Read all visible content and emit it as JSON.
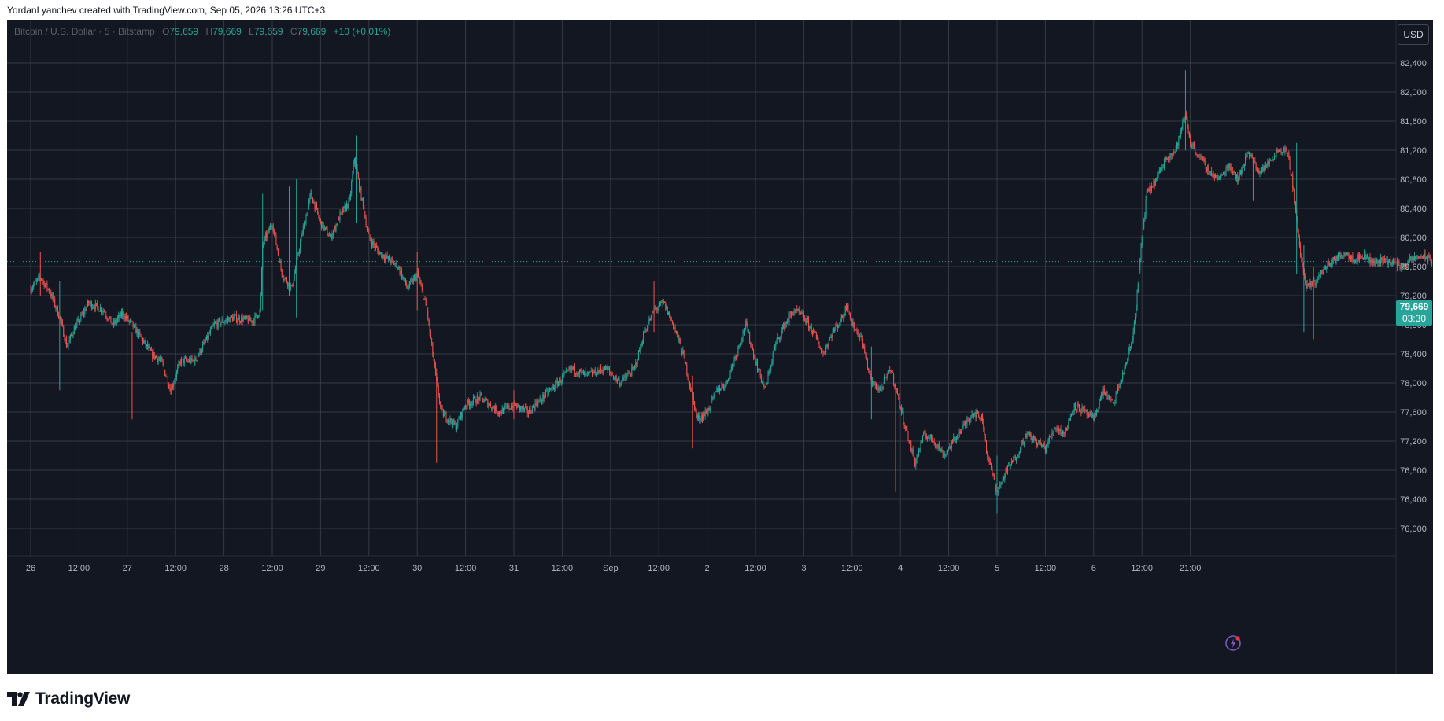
{
  "header": {
    "caption": "YordanLyanchev created with TradingView.com, Sep 05, 2026 13:26 UTC+3"
  },
  "legend": {
    "symbol": "Bitcoin / U.S. Dollar · 5 · Bitstamp",
    "open_label": "O",
    "open": "79,659",
    "high_label": "H",
    "high": "79,669",
    "low_label": "L",
    "low": "79,659",
    "close_label": "C",
    "close": "79,669",
    "change": "+10 (+0.01%)"
  },
  "currency_button": "USD",
  "last_price": {
    "price": "79,669",
    "countdown": "03:30"
  },
  "brand": {
    "name": "TradingView",
    "icon": "tradingview-logo-icon"
  },
  "icons": {
    "replay": "replay-icon"
  },
  "colors": {
    "background": "#131722",
    "grid": "#363a45",
    "up": "#26a69a",
    "down": "#ef5350",
    "axis_text": "#b2b5be",
    "accent": "#9c27b0"
  },
  "chart_data": {
    "type": "candlestick",
    "y_ticks": [
      82400,
      82000,
      81600,
      81200,
      80800,
      80400,
      80000,
      79600,
      79200,
      78800,
      78400,
      78000,
      77600,
      77200,
      76800,
      76400,
      76000
    ],
    "ylim": [
      75650,
      82900
    ],
    "x_labels": [
      "26",
      "12:00",
      "27",
      "12:00",
      "28",
      "12:00",
      "29",
      "12:00",
      "30",
      "12:00",
      "31",
      "12:00",
      "Sep",
      "12:00",
      "2",
      "12:00",
      "3",
      "12:00",
      "4",
      "12:00",
      "5",
      "12:00",
      "6",
      "12:00",
      "21:00"
    ],
    "last_price": 79669,
    "grid": true,
    "path_points": [
      [
        0,
        79300
      ],
      [
        0.2,
        79450
      ],
      [
        0.4,
        79250
      ],
      [
        0.6,
        78900
      ],
      [
        0.75,
        78500
      ],
      [
        0.9,
        78750
      ],
      [
        1.0,
        78850
      ],
      [
        1.2,
        79100
      ],
      [
        1.5,
        79000
      ],
      [
        1.7,
        78800
      ],
      [
        1.9,
        78950
      ],
      [
        2.1,
        78800
      ],
      [
        2.3,
        78600
      ],
      [
        2.5,
        78400
      ],
      [
        2.7,
        78300
      ],
      [
        2.9,
        77900
      ],
      [
        3.1,
        78300
      ],
      [
        3.4,
        78300
      ],
      [
        3.6,
        78550
      ],
      [
        3.8,
        78800
      ],
      [
        4.2,
        78900
      ],
      [
        4.6,
        78850
      ],
      [
        4.75,
        79000
      ],
      [
        4.8,
        79900
      ],
      [
        5.0,
        80200
      ],
      [
        5.2,
        79500
      ],
      [
        5.4,
        79300
      ],
      [
        5.6,
        80000
      ],
      [
        5.8,
        80600
      ],
      [
        6.0,
        80200
      ],
      [
        6.2,
        80000
      ],
      [
        6.4,
        80300
      ],
      [
        6.6,
        80500
      ],
      [
        6.7,
        81100
      ],
      [
        6.8,
        80700
      ],
      [
        7.0,
        80000
      ],
      [
        7.2,
        79800
      ],
      [
        7.4,
        79700
      ],
      [
        7.6,
        79600
      ],
      [
        7.8,
        79300
      ],
      [
        8.0,
        79500
      ],
      [
        8.2,
        79000
      ],
      [
        8.4,
        78000
      ],
      [
        8.5,
        77600
      ],
      [
        8.8,
        77400
      ],
      [
        9.0,
        77700
      ],
      [
        9.3,
        77800
      ],
      [
        9.7,
        77600
      ],
      [
        10.0,
        77700
      ],
      [
        10.3,
        77600
      ],
      [
        10.6,
        77800
      ],
      [
        10.9,
        78000
      ],
      [
        11.2,
        78200
      ],
      [
        11.5,
        78100
      ],
      [
        11.9,
        78200
      ],
      [
        12.2,
        78000
      ],
      [
        12.5,
        78200
      ],
      [
        12.7,
        78700
      ],
      [
        12.9,
        79000
      ],
      [
        13.1,
        79100
      ],
      [
        13.3,
        78800
      ],
      [
        13.5,
        78400
      ],
      [
        13.7,
        77800
      ],
      [
        13.8,
        77500
      ],
      [
        14.0,
        77600
      ],
      [
        14.2,
        77900
      ],
      [
        14.4,
        78000
      ],
      [
        14.6,
        78400
      ],
      [
        14.8,
        78800
      ],
      [
        15.0,
        78300
      ],
      [
        15.2,
        77900
      ],
      [
        15.4,
        78500
      ],
      [
        15.6,
        78800
      ],
      [
        15.8,
        79000
      ],
      [
        16.0,
        78900
      ],
      [
        16.2,
        78700
      ],
      [
        16.4,
        78400
      ],
      [
        16.6,
        78700
      ],
      [
        16.8,
        78900
      ],
      [
        16.9,
        79100
      ],
      [
        17.0,
        78800
      ],
      [
        17.2,
        78600
      ],
      [
        17.4,
        78000
      ],
      [
        17.6,
        77900
      ],
      [
        17.8,
        78200
      ],
      [
        17.95,
        77800
      ],
      [
        18.1,
        77400
      ],
      [
        18.3,
        76900
      ],
      [
        18.5,
        77300
      ],
      [
        18.7,
        77200
      ],
      [
        18.9,
        77000
      ],
      [
        19.1,
        77200
      ],
      [
        19.3,
        77400
      ],
      [
        19.5,
        77600
      ],
      [
        19.7,
        77500
      ],
      [
        19.8,
        77000
      ],
      [
        20.0,
        76500
      ],
      [
        20.2,
        76800
      ],
      [
        20.4,
        77000
      ],
      [
        20.6,
        77300
      ],
      [
        20.8,
        77200
      ],
      [
        21.0,
        77100
      ],
      [
        21.2,
        77400
      ],
      [
        21.4,
        77300
      ],
      [
        21.6,
        77700
      ],
      [
        21.8,
        77600
      ],
      [
        22.0,
        77500
      ],
      [
        22.2,
        77900
      ],
      [
        22.4,
        77700
      ],
      [
        22.6,
        78100
      ],
      [
        22.8,
        78600
      ],
      [
        22.9,
        79200
      ],
      [
        23.0,
        80000
      ],
      [
        23.1,
        80600
      ],
      [
        23.3,
        80800
      ],
      [
        23.5,
        81100
      ],
      [
        23.7,
        81200
      ],
      [
        23.9,
        81700
      ],
      [
        24.0,
        81300
      ],
      [
        24.2,
        81100
      ],
      [
        24.4,
        80900
      ],
      [
        24.6,
        80800
      ],
      [
        24.8,
        81000
      ],
      [
        25.0,
        80800
      ],
      [
        25.2,
        81200
      ],
      [
        25.4,
        80900
      ],
      [
        25.6,
        81000
      ],
      [
        25.8,
        81200
      ],
      [
        26.0,
        81200
      ],
      [
        26.15,
        80600
      ],
      [
        26.25,
        79900
      ],
      [
        26.4,
        79300
      ],
      [
        26.6,
        79400
      ],
      [
        26.8,
        79600
      ],
      [
        27.0,
        79700
      ],
      [
        27.2,
        79800
      ],
      [
        27.4,
        79700
      ],
      [
        27.6,
        79750
      ],
      [
        27.8,
        79650
      ],
      [
        28.0,
        79700
      ],
      [
        28.2,
        79650
      ],
      [
        28.4,
        79600
      ],
      [
        28.6,
        79700
      ],
      [
        28.8,
        79750
      ],
      [
        29.0,
        79669
      ]
    ],
    "spikes": [
      [
        0.2,
        79800,
        79200
      ],
      [
        0.6,
        79400,
        77900
      ],
      [
        2.1,
        78700,
        77500
      ],
      [
        4.8,
        80600,
        79000
      ],
      [
        5.35,
        80700,
        79200
      ],
      [
        5.5,
        80800,
        78900
      ],
      [
        6.75,
        81400,
        80200
      ],
      [
        8.0,
        79800,
        79000
      ],
      [
        8.4,
        78200,
        76900
      ],
      [
        10.0,
        77900,
        77500
      ],
      [
        12.9,
        79400,
        78700
      ],
      [
        13.7,
        78100,
        77100
      ],
      [
        17.4,
        78500,
        77500
      ],
      [
        17.9,
        78000,
        76500
      ],
      [
        20.0,
        77000,
        76200
      ],
      [
        23.9,
        82300,
        81200
      ],
      [
        25.3,
        81100,
        80500
      ],
      [
        26.2,
        81300,
        79500
      ],
      [
        26.35,
        79900,
        78700
      ],
      [
        26.55,
        79600,
        78600
      ]
    ]
  }
}
